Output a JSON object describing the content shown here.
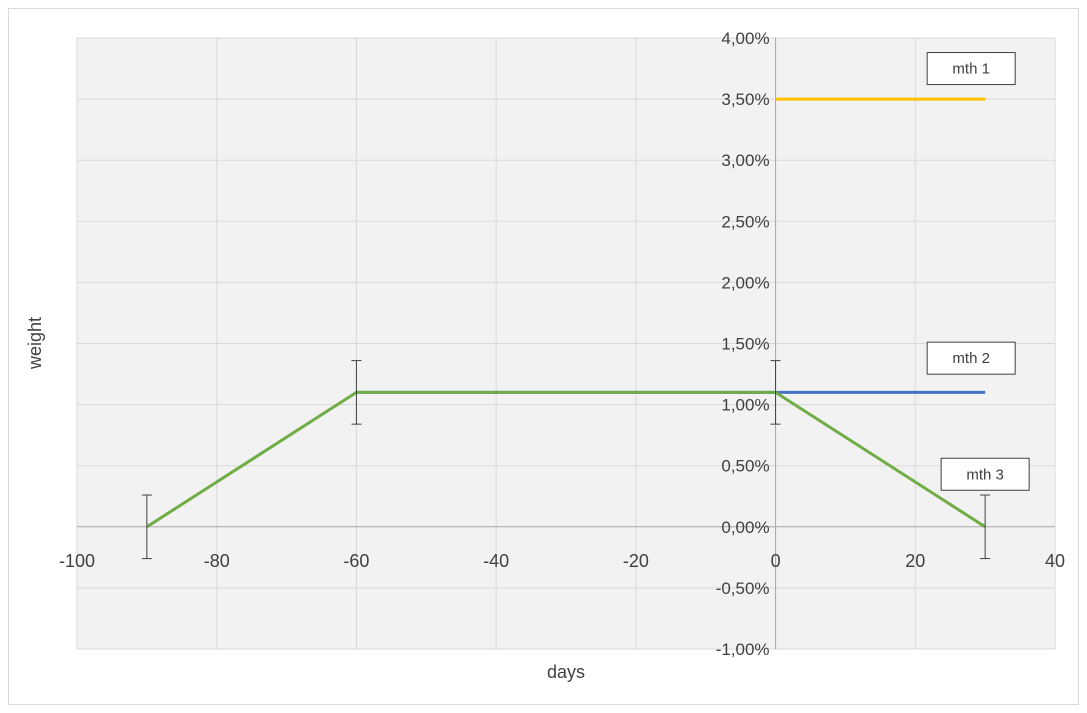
{
  "chart_data": {
    "type": "line",
    "xlabel": "days",
    "ylabel": "weight",
    "xlim": [
      -100,
      40
    ],
    "ylim": [
      -0.01,
      0.04
    ],
    "x_ticks": [
      -100,
      -80,
      -60,
      -40,
      -20,
      0,
      20,
      40
    ],
    "x_tick_labels": [
      "-100",
      "-80",
      "-60",
      "-40",
      "-20",
      "0",
      "20",
      "40"
    ],
    "y_ticks": [
      -0.01,
      -0.005,
      0,
      0.005,
      0.01,
      0.015,
      0.02,
      0.025,
      0.03,
      0.035,
      0.04
    ],
    "y_tick_labels": [
      "-1,00%",
      "-0,50%",
      "0,00%",
      "0,50%",
      "1,00%",
      "1,50%",
      "2,00%",
      "2,50%",
      "3,00%",
      "3,50%",
      "4,00%"
    ],
    "grid": true,
    "series": [
      {
        "name": "mth 1",
        "color": "#ffc000",
        "points": [
          [
            0,
            0.035
          ],
          [
            30,
            0.035
          ]
        ]
      },
      {
        "name": "mth 2",
        "color": "#4472c4",
        "points": [
          [
            -60,
            0.011
          ],
          [
            0,
            0.011
          ],
          [
            30,
            0.011
          ]
        ]
      },
      {
        "name": "mth 3",
        "color": "#70ad47",
        "points": [
          [
            -90,
            0
          ],
          [
            -60,
            0.011
          ],
          [
            0,
            0.011
          ],
          [
            30,
            0
          ]
        ]
      }
    ],
    "error_bars": [
      {
        "x": -90,
        "y": 0,
        "err": 0.0026
      },
      {
        "x": -60,
        "y": 0.011,
        "err": 0.0026
      },
      {
        "x": 0,
        "y": 0.011,
        "err": 0.0026
      },
      {
        "x": 30,
        "y": 0,
        "err": 0.0026
      }
    ],
    "annotations": [
      {
        "text": "mth 1",
        "x": 28,
        "y": 0.0375
      },
      {
        "text": "mth 2",
        "x": 28,
        "y": 0.0138
      },
      {
        "text": "mth 3",
        "x": 30,
        "y": 0.0043
      }
    ]
  }
}
